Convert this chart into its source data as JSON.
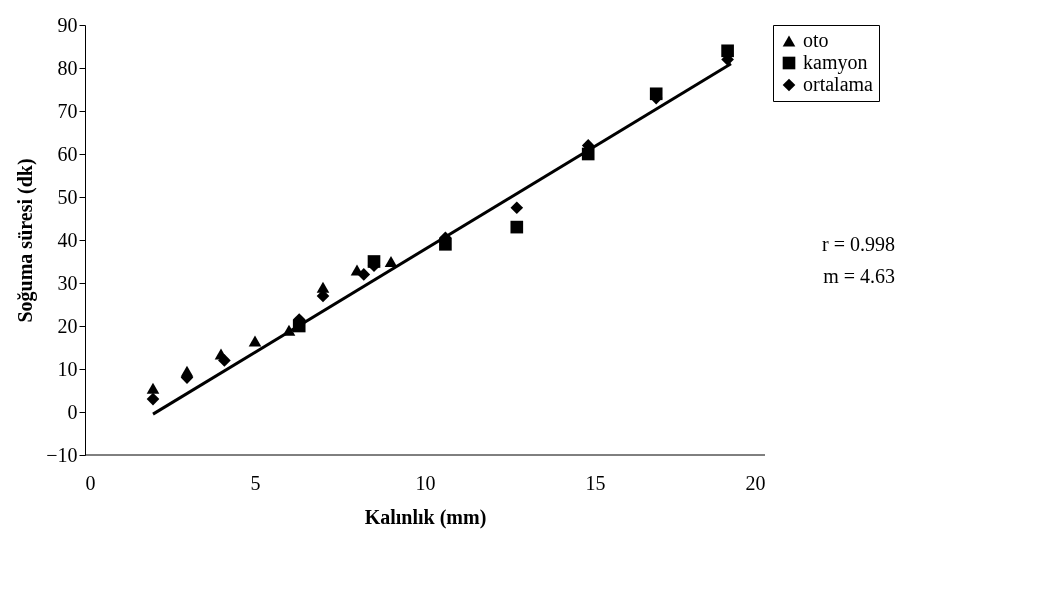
{
  "chart_data": {
    "type": "scatter",
    "xlabel": "Kalınlık (mm)",
    "ylabel": "Soğuma süresi (dk)",
    "xlim": [
      0,
      20
    ],
    "xticks": [
      0,
      5,
      10,
      15,
      20
    ],
    "ylim": [
      -10,
      90
    ],
    "yticks": [
      -10,
      0,
      10,
      20,
      30,
      40,
      50,
      60,
      70,
      80,
      90
    ],
    "grid": false,
    "legend": "top right",
    "annotations": [
      "r = 0.998",
      "m = 4.63"
    ],
    "series": [
      {
        "name": "oto",
        "color": "#000000",
        "marker": "triangle",
        "x": [
          2,
          3,
          4,
          5,
          6,
          7,
          8,
          9
        ],
        "values": [
          5.5,
          9.5,
          13.5,
          16.5,
          19,
          29,
          33,
          35
        ]
      },
      {
        "name": "kamyon",
        "color": "#000000",
        "marker": "square",
        "x": [
          6.3,
          8.5,
          10.6,
          12.7,
          14.8,
          16.8,
          18.9
        ],
        "values": [
          20,
          35,
          39,
          43,
          60,
          74,
          84
        ]
      },
      {
        "name": "ortalama",
        "color": "#000000",
        "marker": "diamond",
        "x": [
          2,
          3,
          4.1,
          6.3,
          7,
          8.2,
          8.5,
          10.6,
          12.7,
          14.8,
          16.8,
          18.9
        ],
        "values": [
          3,
          8,
          12,
          21.5,
          27,
          32,
          34,
          40.5,
          47.5,
          62,
          73,
          82
        ]
      },
      {
        "type": "line",
        "color": "#000000",
        "marker": "none",
        "x": [
          2,
          19
        ],
        "values": [
          -0.5,
          81
        ]
      }
    ]
  }
}
